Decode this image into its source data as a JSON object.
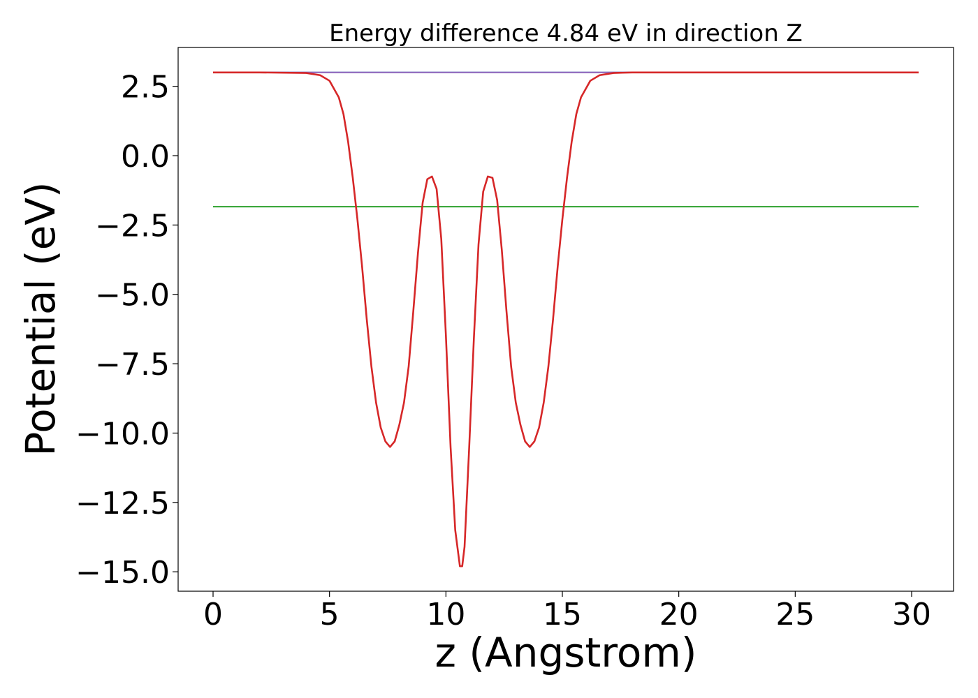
{
  "chart_data": {
    "type": "line",
    "title": "Energy difference 4.84 eV in direction Z",
    "xlabel": "z (Angstrom)",
    "ylabel": "Potential (eV)",
    "xlim": [
      -1.5,
      31.8
    ],
    "ylim": [
      -15.7,
      3.9
    ],
    "xticks": [
      0,
      5,
      10,
      15,
      20,
      25,
      30
    ],
    "xtick_labels": [
      "0",
      "5",
      "10",
      "15",
      "20",
      "25",
      "30"
    ],
    "yticks": [
      2.5,
      0.0,
      -2.5,
      -5.0,
      -7.5,
      -10.0,
      -12.5,
      -15.0
    ],
    "ytick_labels": [
      "2.5",
      "0.0",
      "−2.5",
      "−5.0",
      "−7.5",
      "−10.0",
      "−12.5",
      "−15.0"
    ],
    "grid": false,
    "legend": "none",
    "series": [
      {
        "color": "#1f77b4",
        "x": [
          0,
          30.3
        ],
        "y": [
          3.0,
          3.0
        ]
      },
      {
        "color": "#2ca02c",
        "x": [
          0,
          30.3
        ],
        "y": [
          -1.84,
          -1.84
        ]
      },
      {
        "color": "#9467bd",
        "x": [
          0,
          30.3
        ],
        "y": [
          3.0,
          3.0
        ]
      },
      {
        "color": "#d62728",
        "x": [
          0,
          2,
          4,
          4.6,
          5,
          5.4,
          5.6,
          5.8,
          6.0,
          6.2,
          6.4,
          6.6,
          6.8,
          7.0,
          7.2,
          7.4,
          7.6,
          7.8,
          8.0,
          8.2,
          8.4,
          8.6,
          8.8,
          9.0,
          9.2,
          9.4,
          9.6,
          9.8,
          10.0,
          10.2,
          10.4,
          10.6,
          10.7,
          10.8,
          11.0,
          11.2,
          11.4,
          11.6,
          11.8,
          12.0,
          12.2,
          12.4,
          12.6,
          12.8,
          13.0,
          13.2,
          13.4,
          13.6,
          13.8,
          14.0,
          14.2,
          14.4,
          14.6,
          14.8,
          15.0,
          15.2,
          15.4,
          15.6,
          15.8,
          16.2,
          16.6,
          17.2,
          18.0,
          20,
          25,
          30.3
        ],
        "y": [
          3.0,
          3.0,
          2.98,
          2.9,
          2.7,
          2.1,
          1.5,
          0.5,
          -0.8,
          -2.3,
          -4.0,
          -5.9,
          -7.6,
          -8.9,
          -9.8,
          -10.3,
          -10.5,
          -10.3,
          -9.7,
          -8.9,
          -7.6,
          -5.6,
          -3.5,
          -1.7,
          -0.85,
          -0.75,
          -1.2,
          -3.0,
          -6.5,
          -10.5,
          -13.5,
          -14.8,
          -14.8,
          -14.1,
          -10.5,
          -6.6,
          -3.2,
          -1.3,
          -0.75,
          -0.8,
          -1.6,
          -3.4,
          -5.6,
          -7.6,
          -8.9,
          -9.7,
          -10.3,
          -10.5,
          -10.3,
          -9.8,
          -8.9,
          -7.6,
          -5.9,
          -4.0,
          -2.3,
          -0.8,
          0.5,
          1.5,
          2.1,
          2.7,
          2.9,
          2.98,
          3.0,
          3.0,
          3.0,
          3.0
        ]
      }
    ]
  }
}
